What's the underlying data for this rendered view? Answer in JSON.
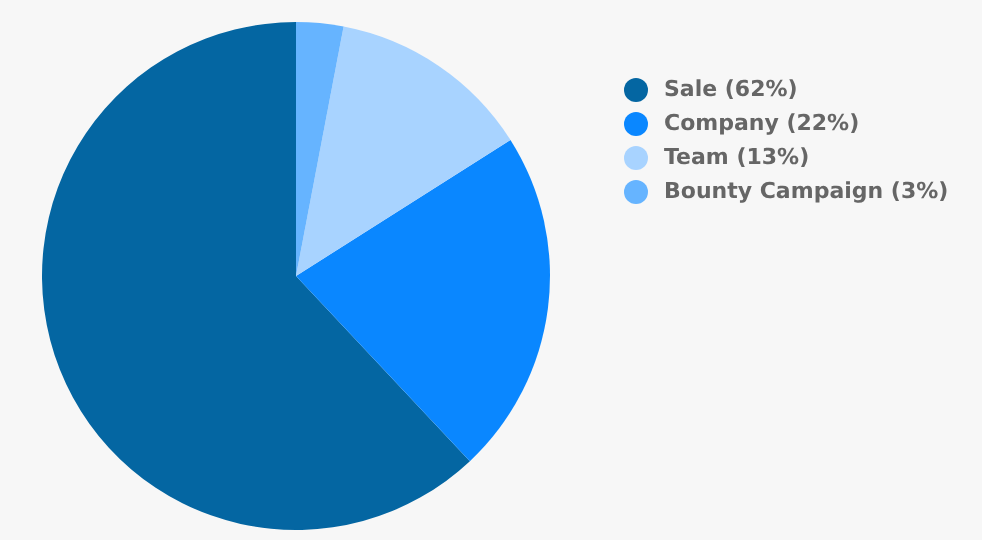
{
  "chart_data": {
    "type": "pie",
    "categories": [
      "Sale (62%)",
      "Company (22%)",
      "Team (13%)",
      "Bounty Campaign (3%)"
    ],
    "values": [
      62,
      22,
      13,
      3
    ],
    "colors": [
      "#0466a2",
      "#0a87ff",
      "#a8d3ff",
      "#66b4ff"
    ],
    "legend": "right"
  }
}
